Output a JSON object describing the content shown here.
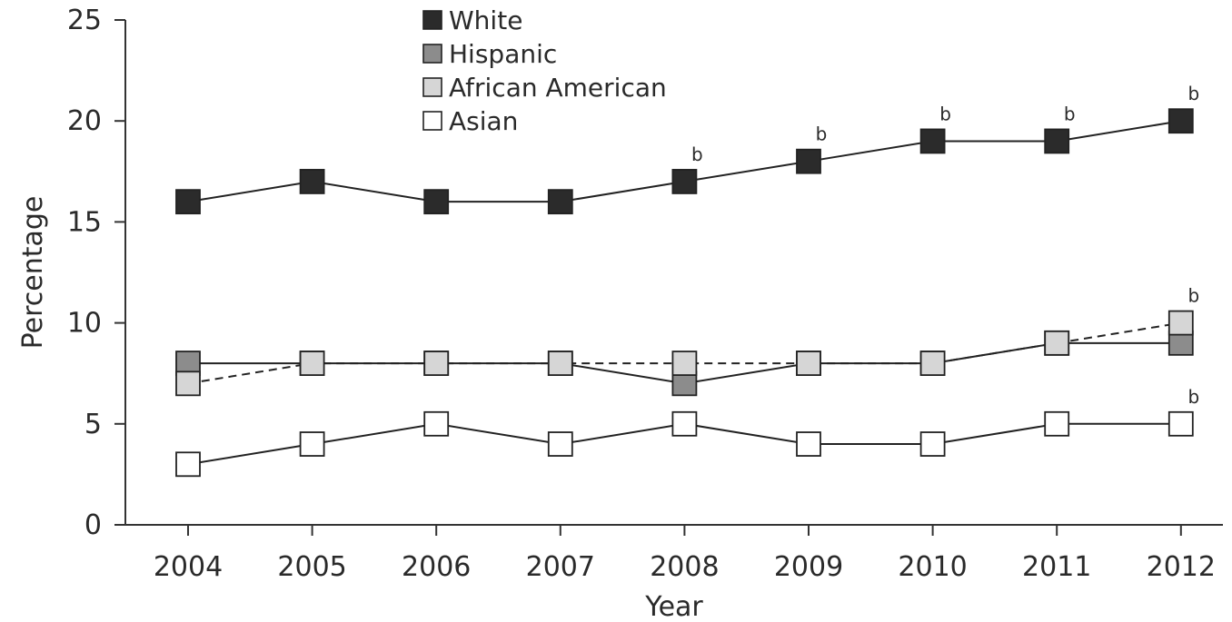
{
  "chart_data": {
    "type": "line",
    "xlabel": "Year",
    "ylabel": "Percentage",
    "x": [
      "2004",
      "2005",
      "2006",
      "2007",
      "2008",
      "2009",
      "2010",
      "2011",
      "2012"
    ],
    "ylim": [
      0,
      25
    ],
    "yticks": [
      "0",
      "5",
      "10",
      "15",
      "20",
      "25"
    ],
    "grid": false,
    "legend_position": "top",
    "series": [
      {
        "name": "White",
        "color": "#2b2b2b",
        "line_style": "solid",
        "values": [
          16,
          17,
          16,
          16,
          17,
          18,
          19,
          19,
          20
        ]
      },
      {
        "name": "Hispanic",
        "color": "#8c8c8c",
        "line_style": "solid",
        "values": [
          8,
          8,
          8,
          8,
          7,
          8,
          8,
          9,
          9
        ]
      },
      {
        "name": "African American",
        "color": "#d6d6d6",
        "line_style": "dashed",
        "values": [
          7,
          8,
          8,
          8,
          8,
          8,
          8,
          9,
          10
        ]
      },
      {
        "name": "Asian",
        "color": "#ffffff",
        "line_style": "solid",
        "values": [
          3,
          4,
          5,
          4,
          5,
          4,
          4,
          5,
          5
        ]
      }
    ],
    "annotations": [
      {
        "text": "b",
        "series": "White",
        "x": "2008"
      },
      {
        "text": "b",
        "series": "White",
        "x": "2009"
      },
      {
        "text": "b",
        "series": "White",
        "x": "2010"
      },
      {
        "text": "b",
        "series": "White",
        "x": "2011"
      },
      {
        "text": "b",
        "series": "White",
        "x": "2012"
      },
      {
        "text": "b",
        "series": "African American",
        "x": "2012"
      },
      {
        "text": "b",
        "series": "Asian",
        "x": "2012"
      }
    ]
  }
}
